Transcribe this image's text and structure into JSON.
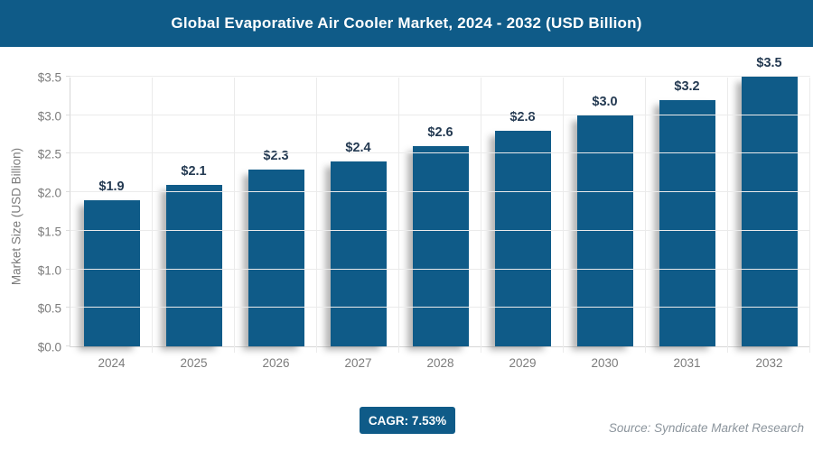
{
  "header": {
    "title": "Global Evaporative Air Cooler Market, 2024 - 2032 (USD Billion)",
    "bg_color": "#0f5b88",
    "text_color": "#ffffff"
  },
  "chart_data": {
    "type": "bar",
    "title": "Global Evaporative Air Cooler Market, 2024 - 2032 (USD Billion)",
    "categories": [
      "2024",
      "2025",
      "2026",
      "2027",
      "2028",
      "2029",
      "2030",
      "2031",
      "2032"
    ],
    "values": [
      1.9,
      2.1,
      2.3,
      2.4,
      2.6,
      2.8,
      3.0,
      3.2,
      3.5
    ],
    "value_labels": [
      "$1.9",
      "$2.1",
      "$2.3",
      "$2.4",
      "$2.6",
      "$2.8",
      "$3.0",
      "$3.2",
      "$3.5"
    ],
    "xlabel": "",
    "ylabel": "Market Size (USD Billion)",
    "ylim": [
      0,
      3.5
    ],
    "ytick_step": 0.5,
    "ytick_labels": [
      "$0.0",
      "$0.5",
      "$1.0",
      "$1.5",
      "$2.0",
      "$2.5",
      "$3.0",
      "$3.5"
    ],
    "grid": true,
    "legend": false,
    "bar_color": "#0f5b88",
    "value_label_color": "#243a52",
    "axis_text_color": "#7c7c7c",
    "gridline_color": "#ebebeb"
  },
  "footer": {
    "cagr_label": "CAGR: 7.53%",
    "badge_color": "#0f5b88",
    "source": "Source: Syndicate Market Research"
  }
}
